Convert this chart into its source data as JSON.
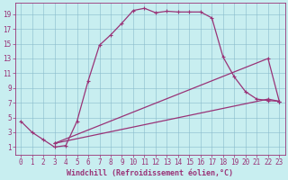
{
  "xlabel": "Windchill (Refroidissement éolien,°C)",
  "xlim": [
    -0.5,
    23.5
  ],
  "ylim": [
    0,
    20.5
  ],
  "xticks": [
    0,
    1,
    2,
    3,
    4,
    5,
    6,
    7,
    8,
    9,
    10,
    11,
    12,
    13,
    14,
    15,
    16,
    17,
    18,
    19,
    20,
    21,
    22,
    23
  ],
  "yticks": [
    1,
    3,
    5,
    7,
    9,
    11,
    13,
    15,
    17,
    19
  ],
  "bg_color": "#c8eef0",
  "line_color": "#993377",
  "line1_x": [
    0,
    1,
    2,
    3,
    4,
    5,
    6,
    7,
    8,
    9,
    10,
    11,
    12,
    13,
    14,
    15,
    16,
    17,
    18,
    19,
    20,
    21,
    22,
    23
  ],
  "line1_y": [
    4.5,
    3.0,
    2.0,
    1.0,
    1.2,
    4.5,
    10.0,
    14.8,
    16.2,
    17.8,
    19.5,
    19.8,
    19.2,
    19.4,
    19.3,
    19.3,
    19.3,
    18.5,
    13.2,
    10.5,
    8.5,
    7.5,
    7.3,
    7.2
  ],
  "line2_x": [
    3,
    22,
    23
  ],
  "line2_y": [
    1.5,
    7.5,
    7.2
  ],
  "line3_x": [
    3,
    22,
    23
  ],
  "line3_y": [
    1.5,
    13.0,
    7.2
  ],
  "marker_size": 3,
  "line_width": 0.9,
  "tick_fontsize": 5.5,
  "xlabel_fontsize": 6
}
